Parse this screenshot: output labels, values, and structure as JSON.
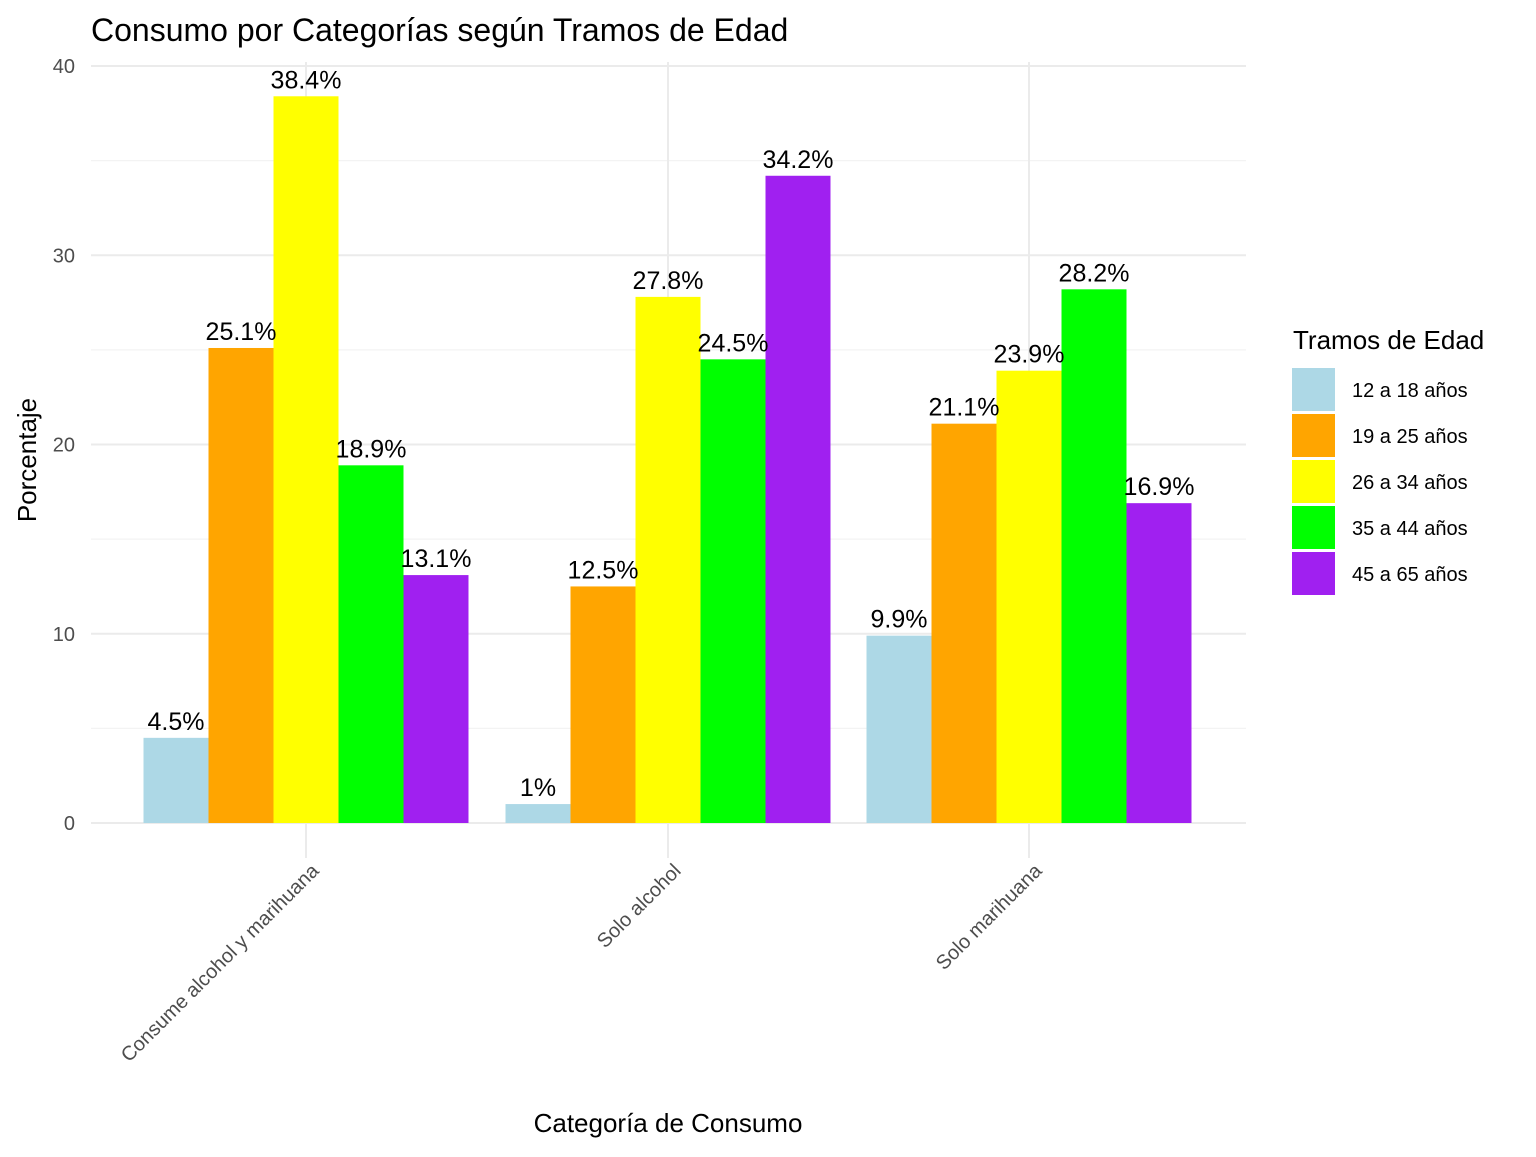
{
  "chart_data": {
    "type": "bar",
    "title": "Consumo por Categorías según Tramos de Edad",
    "xlabel": "Categoría de Consumo",
    "ylabel": "Porcentaje",
    "ylim": [
      0,
      40
    ],
    "yticks": [
      "0",
      "10",
      "20",
      "30",
      "40"
    ],
    "grid": true,
    "legend_title": "Tramos de Edad",
    "legend_position": "right",
    "categories": [
      "Consume alcohol y marihuana",
      "Solo alcohol",
      "Solo marihuana"
    ],
    "series": [
      {
        "name": "12 a 18 años",
        "color": "#add8e6",
        "values": [
          4.5,
          1,
          9.9
        ],
        "labels": [
          "4.5%",
          "1%",
          "9.9%"
        ]
      },
      {
        "name": "19 a 25 años",
        "color": "#ffa500",
        "values": [
          25.1,
          12.5,
          21.1
        ],
        "labels": [
          "25.1%",
          "12.5%",
          "21.1%"
        ]
      },
      {
        "name": "26 a 34 años",
        "color": "#ffff00",
        "values": [
          38.4,
          27.8,
          23.9
        ],
        "labels": [
          "38.4%",
          "27.8%",
          "23.9%"
        ]
      },
      {
        "name": "35 a 44 años",
        "color": "#00ff00",
        "values": [
          18.9,
          24.5,
          28.2
        ],
        "labels": [
          "18.9%",
          "24.5%",
          "28.2%"
        ]
      },
      {
        "name": "45 a 65 años",
        "color": "#a020f0",
        "values": [
          13.1,
          34.2,
          16.9
        ],
        "labels": [
          "13.1%",
          "34.2%",
          "16.9%"
        ]
      }
    ]
  }
}
